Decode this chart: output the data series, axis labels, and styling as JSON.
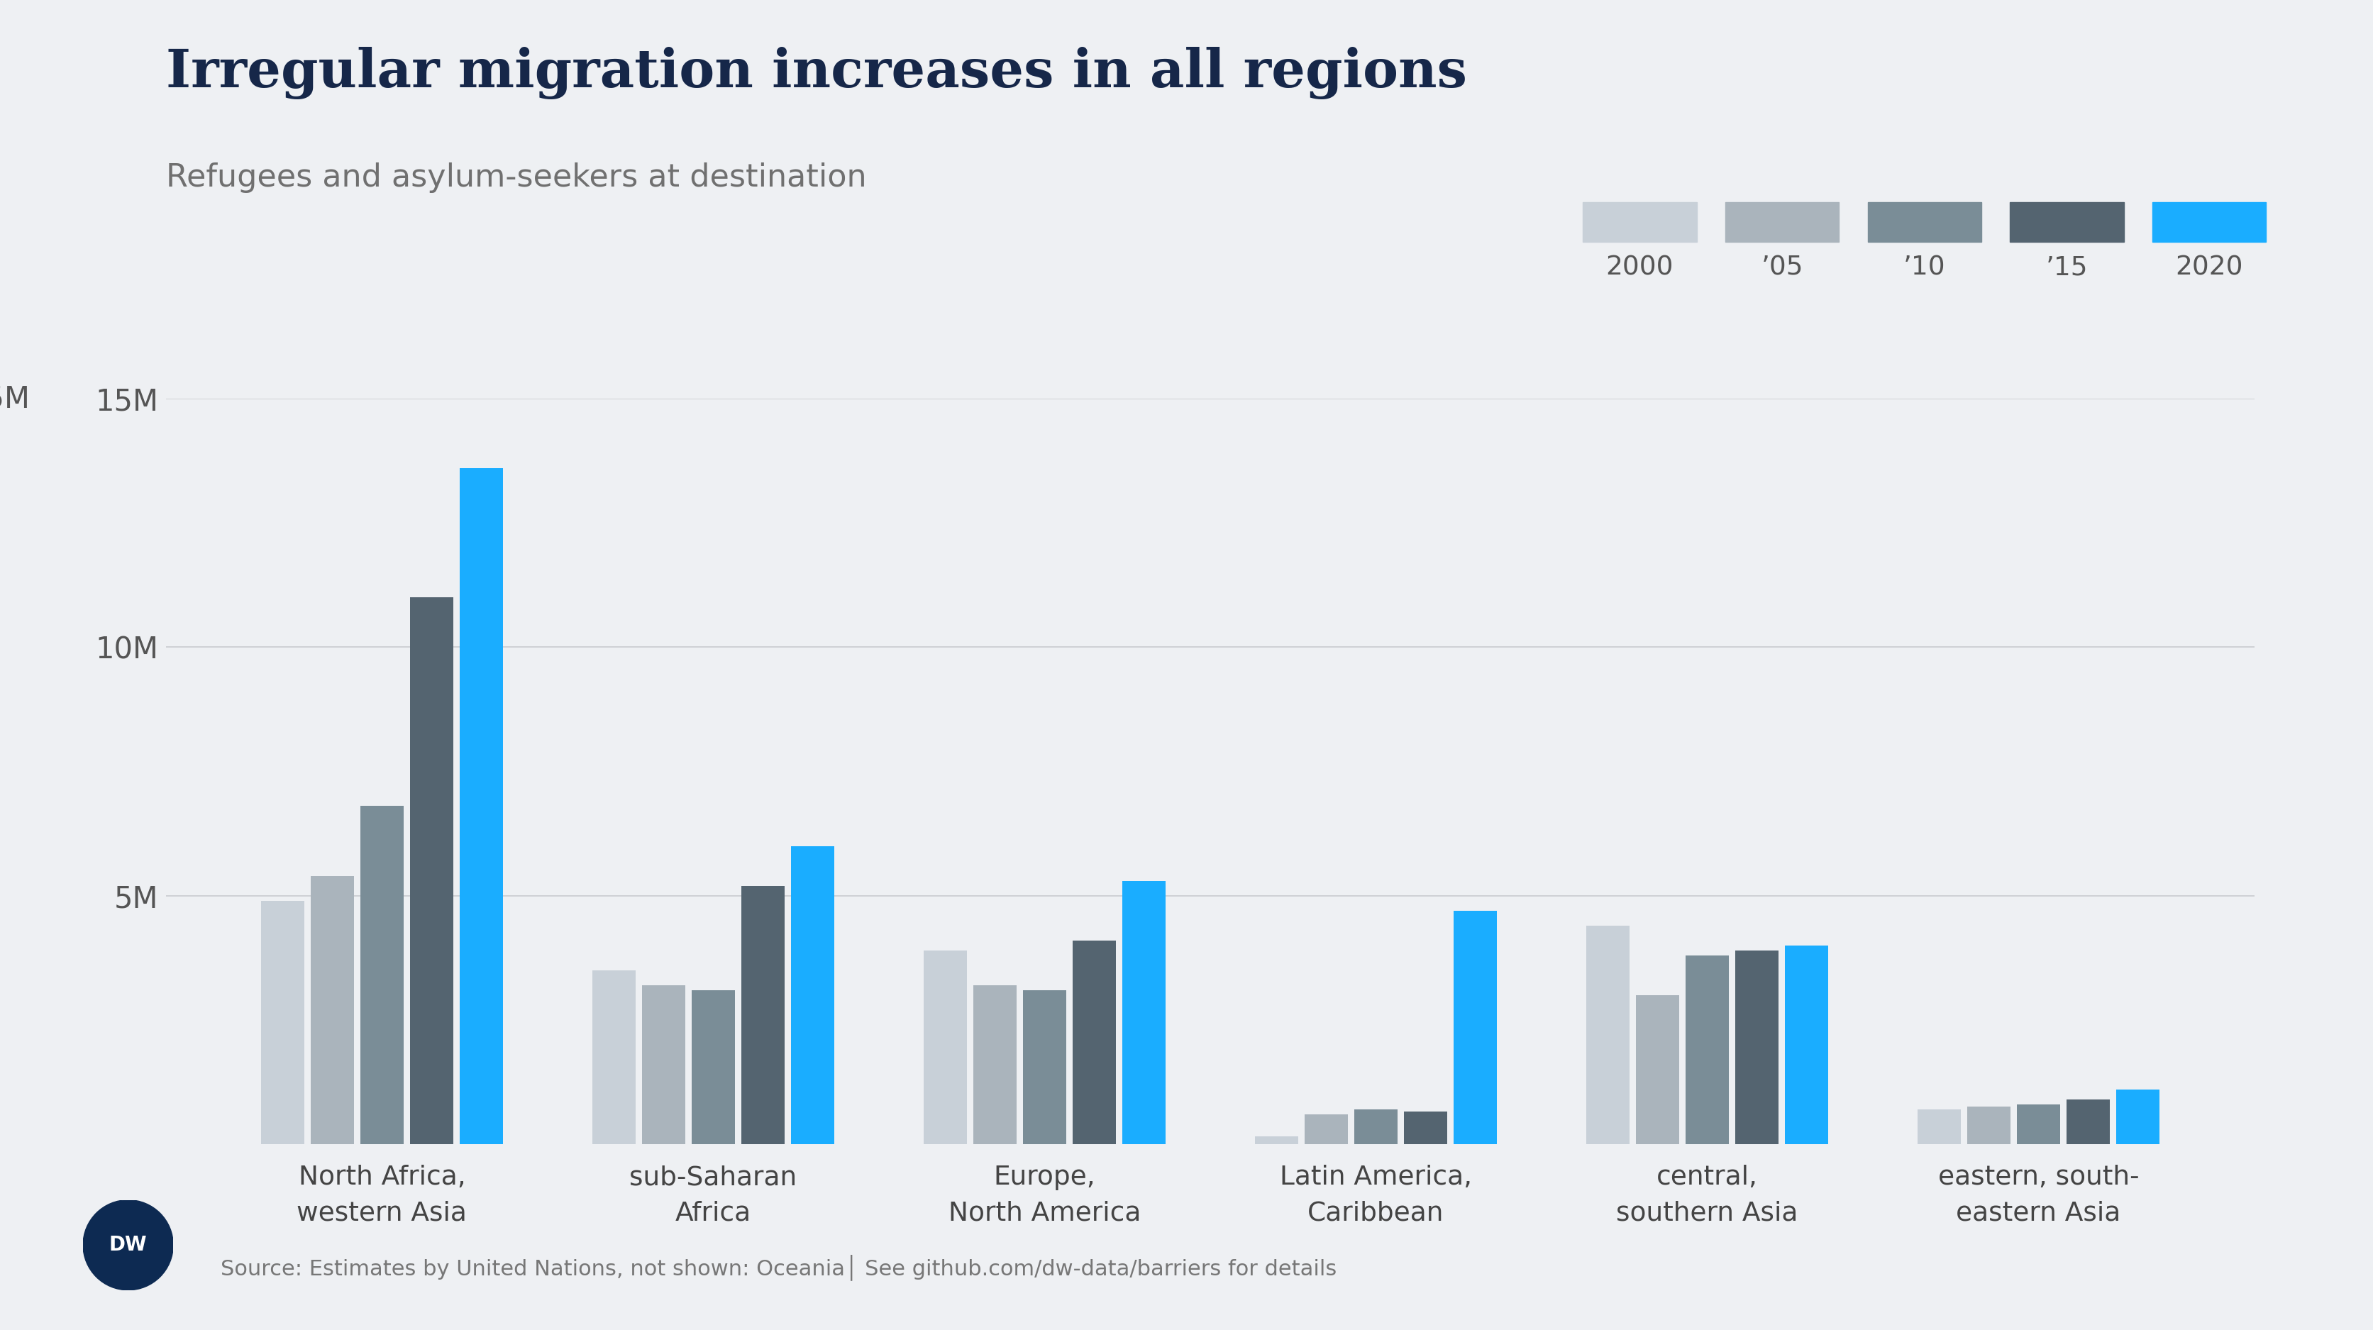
{
  "title": "Irregular migration increases in all regions",
  "subtitle": "Refugees and asylum-seekers at destination",
  "source_text": "Source: Estimates by United Nations, not shown: Oceania│ See github.com/dw-data/barriers for details",
  "background_color": "#eef0f3",
  "title_color": "#162749",
  "subtitle_color": "#666666",
  "grid_color": "#c8cacf",
  "ylim": [
    0,
    15000000
  ],
  "yticks": [
    5000000,
    10000000,
    15000000
  ],
  "ytick_labels": [
    "5M",
    "10M",
    "15M"
  ],
  "years": [
    "2000",
    "’05",
    "’10",
    "’15",
    "2020"
  ],
  "year_colors": [
    "#c8d0d8",
    "#aab4bc",
    "#7a8d97",
    "#546470",
    "#1aadff"
  ],
  "categories": [
    "North Africa,\nwestern Asia",
    "sub-Saharan\nAfrica",
    "Europe,\nNorth America",
    "Latin America,\nCaribbean",
    "central,\nsouthern Asia",
    "eastern, south-\neastern Asia"
  ],
  "values": [
    [
      4900000,
      5400000,
      6800000,
      11000000,
      13600000
    ],
    [
      3500000,
      3200000,
      3100000,
      5200000,
      6000000
    ],
    [
      3900000,
      3200000,
      3100000,
      4100000,
      5300000
    ],
    [
      150000,
      600000,
      700000,
      650000,
      4700000
    ],
    [
      4400000,
      3000000,
      3800000,
      3900000,
      4000000
    ],
    [
      700000,
      750000,
      800000,
      900000,
      1100000
    ]
  ],
  "dw_logo_color": "#0d2a52",
  "bar_width": 0.13,
  "bar_gap": 0.02
}
